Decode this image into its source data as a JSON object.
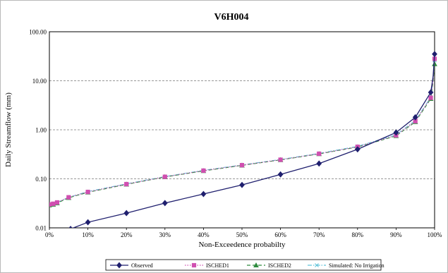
{
  "chart_data": {
    "type": "line",
    "title": "V6H004",
    "xlabel": "Non-Exceedence probabilty",
    "ylabel": "Daily Streamflow (mm)",
    "xlim": [
      0,
      100
    ],
    "ylim": [
      0.01,
      100
    ],
    "yscale": "log",
    "grid": "horizontal dashed",
    "legend_position": "bottom",
    "x_ticks": [
      "0%",
      "10%",
      "20%",
      "30%",
      "40%",
      "50%",
      "60%",
      "70%",
      "80%",
      "90%",
      "100%"
    ],
    "y_ticks": [
      "100.00",
      "10.00",
      "1.00",
      "0.10",
      "0.01"
    ],
    "series": [
      {
        "name": "Observed",
        "color": "#1f1f6e",
        "line": "solid",
        "marker": "diamond",
        "points": [
          [
            5.5,
            0.0095
          ],
          [
            10,
            0.013
          ],
          [
            20,
            0.02
          ],
          [
            30,
            0.032
          ],
          [
            40,
            0.049
          ],
          [
            50,
            0.075
          ],
          [
            60,
            0.123
          ],
          [
            70,
            0.205
          ],
          [
            80,
            0.4
          ],
          [
            90,
            0.88
          ],
          [
            95,
            1.8
          ],
          [
            99,
            5.8
          ],
          [
            99.6,
            12
          ],
          [
            100,
            35
          ]
        ]
      },
      {
        "name": "ISCHED1",
        "color": "#d04fb0",
        "line": "dotted",
        "marker": "square",
        "points": [
          [
            0,
            0.03
          ],
          [
            1,
            0.031
          ],
          [
            2,
            0.033
          ],
          [
            5,
            0.042
          ],
          [
            10,
            0.054
          ],
          [
            20,
            0.078
          ],
          [
            30,
            0.11
          ],
          [
            40,
            0.147
          ],
          [
            50,
            0.19
          ],
          [
            60,
            0.245
          ],
          [
            70,
            0.325
          ],
          [
            80,
            0.45
          ],
          [
            90,
            0.77
          ],
          [
            95,
            1.5
          ],
          [
            99,
            4.5
          ],
          [
            99.6,
            10
          ],
          [
            100,
            28
          ]
        ]
      },
      {
        "name": "ISCHED2",
        "color": "#2e8b3e",
        "line": "dashed",
        "marker": "triangle",
        "points": [
          [
            0,
            0.029
          ],
          [
            1,
            0.03
          ],
          [
            2,
            0.032
          ],
          [
            5,
            0.041
          ],
          [
            10,
            0.053
          ],
          [
            20,
            0.077
          ],
          [
            30,
            0.109
          ],
          [
            40,
            0.145
          ],
          [
            50,
            0.188
          ],
          [
            60,
            0.243
          ],
          [
            70,
            0.322
          ],
          [
            80,
            0.445
          ],
          [
            90,
            0.75
          ],
          [
            95,
            1.45
          ],
          [
            99,
            4.3
          ],
          [
            99.6,
            9.5
          ],
          [
            100,
            22
          ]
        ]
      },
      {
        "name": "Simulated: No Irrigation",
        "color": "#5fc3d9",
        "line": "dash-dot",
        "marker": "x",
        "points": [
          [
            0,
            0.03
          ],
          [
            1,
            0.031
          ],
          [
            2,
            0.033
          ],
          [
            5,
            0.042
          ],
          [
            10,
            0.055
          ],
          [
            20,
            0.079
          ],
          [
            30,
            0.111
          ],
          [
            40,
            0.149
          ],
          [
            50,
            0.192
          ],
          [
            60,
            0.248
          ],
          [
            70,
            0.33
          ],
          [
            80,
            0.46
          ],
          [
            90,
            0.79
          ],
          [
            95,
            1.55
          ],
          [
            99,
            4.6
          ],
          [
            99.6,
            10.5
          ],
          [
            100,
            26
          ]
        ]
      }
    ]
  }
}
